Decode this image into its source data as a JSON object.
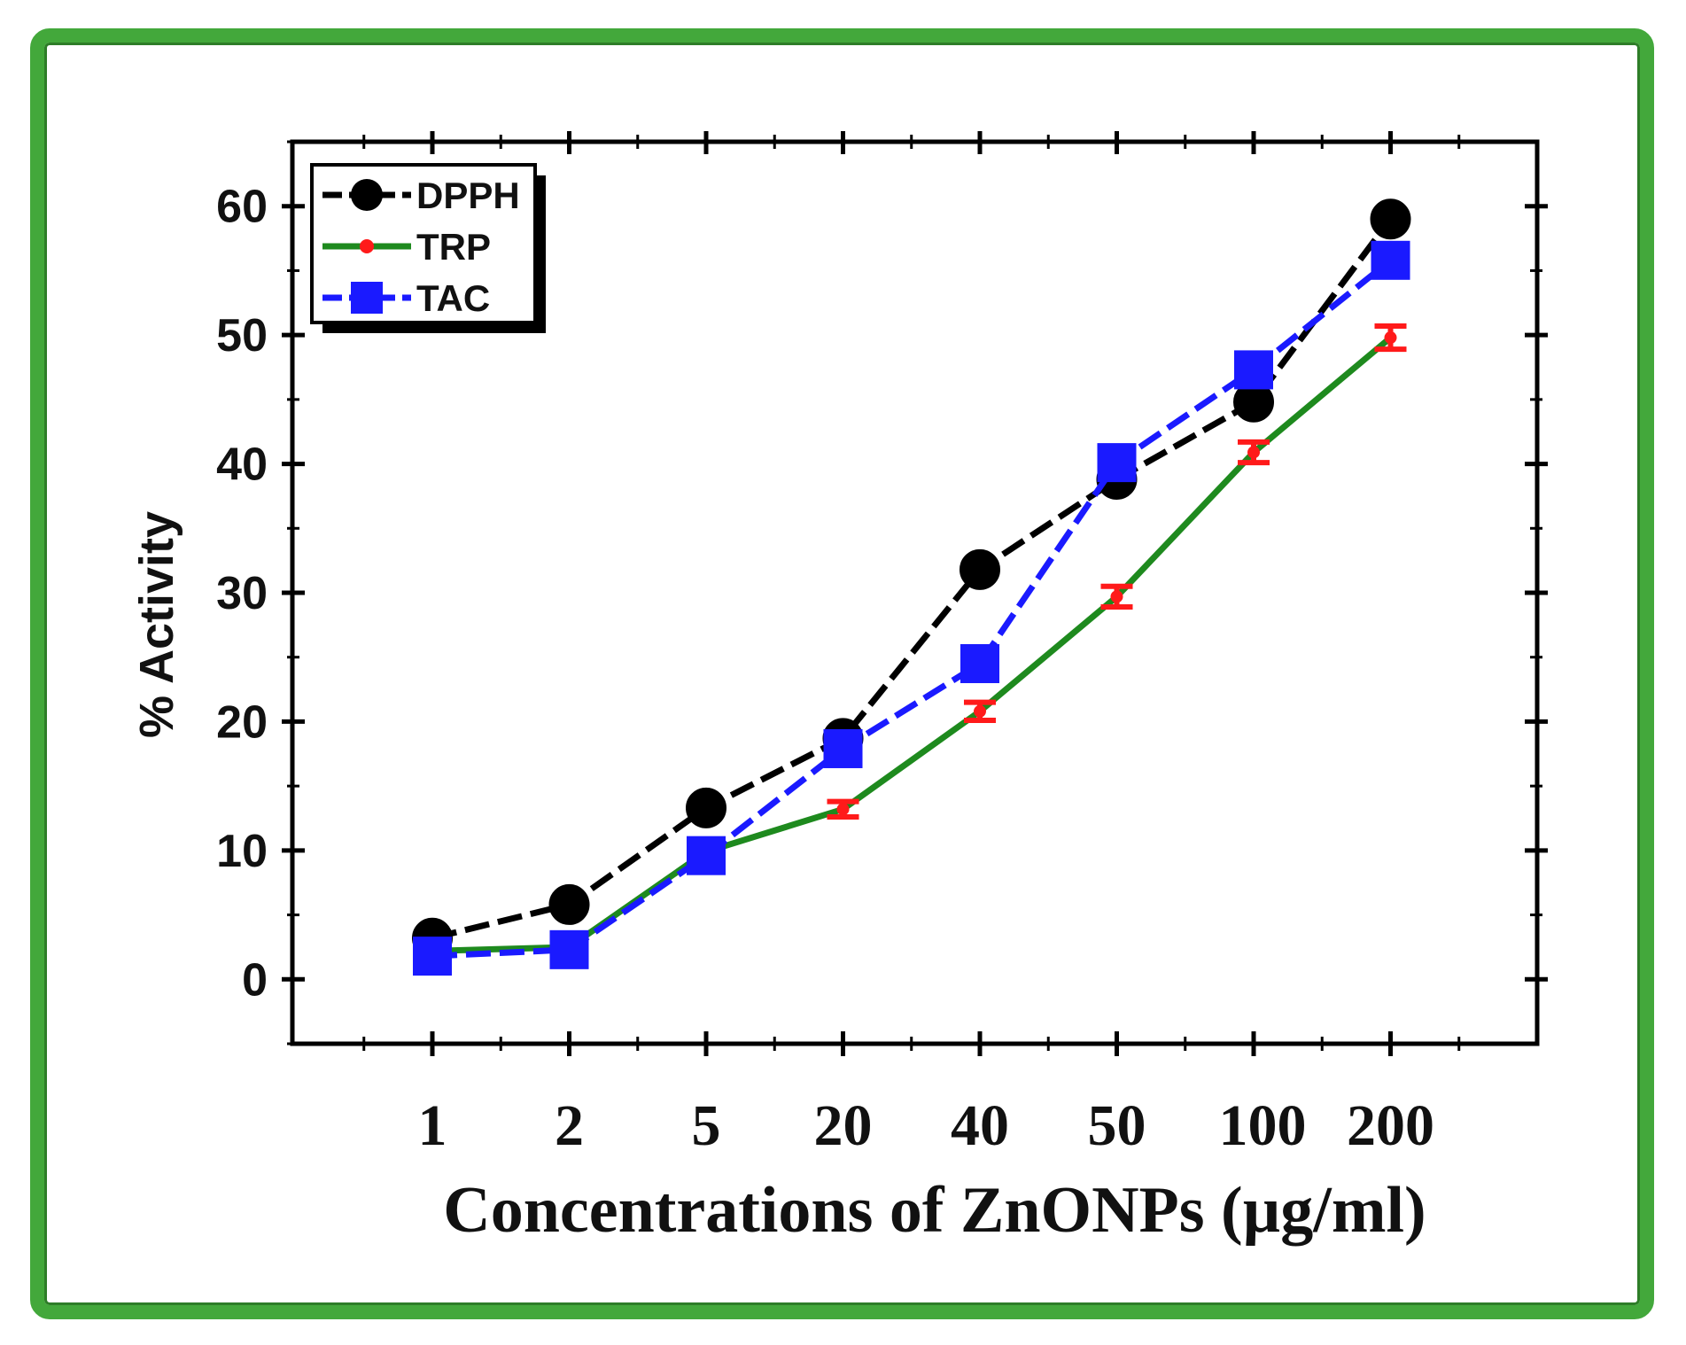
{
  "chart_data": {
    "type": "line",
    "title": "",
    "xlabel": "Concentrations of ZnONPs (µg/ml)",
    "ylabel": "% Activity",
    "categories": [
      "1",
      "2",
      "5",
      "20",
      "40",
      "50",
      "100",
      "200"
    ],
    "ylim": [
      -5,
      65
    ],
    "yticks": [
      0,
      10,
      20,
      30,
      40,
      50,
      60
    ],
    "legend_position": "top-left",
    "series": [
      {
        "name": "DPPH",
        "color": "#000000",
        "line_style": "dashed",
        "marker": "circle",
        "values": [
          3.2,
          5.8,
          13.3,
          18.7,
          31.8,
          38.8,
          44.8,
          59.0
        ]
      },
      {
        "name": "TRP",
        "color": "#1e8a1e",
        "marker_color": "#ff1a1a",
        "line_style": "solid",
        "marker": "errorbar",
        "values": [
          2.2,
          2.5,
          9.9,
          13.2,
          20.8,
          29.7,
          40.9,
          49.8
        ],
        "errors": [
          0.5,
          0.5,
          0.6,
          0.6,
          0.7,
          0.8,
          0.8,
          0.9
        ]
      },
      {
        "name": "TAC",
        "color": "#1a1aff",
        "line_style": "dashed",
        "marker": "square",
        "values": [
          1.8,
          2.3,
          9.6,
          17.9,
          24.5,
          40.1,
          47.3,
          55.8
        ]
      }
    ]
  }
}
